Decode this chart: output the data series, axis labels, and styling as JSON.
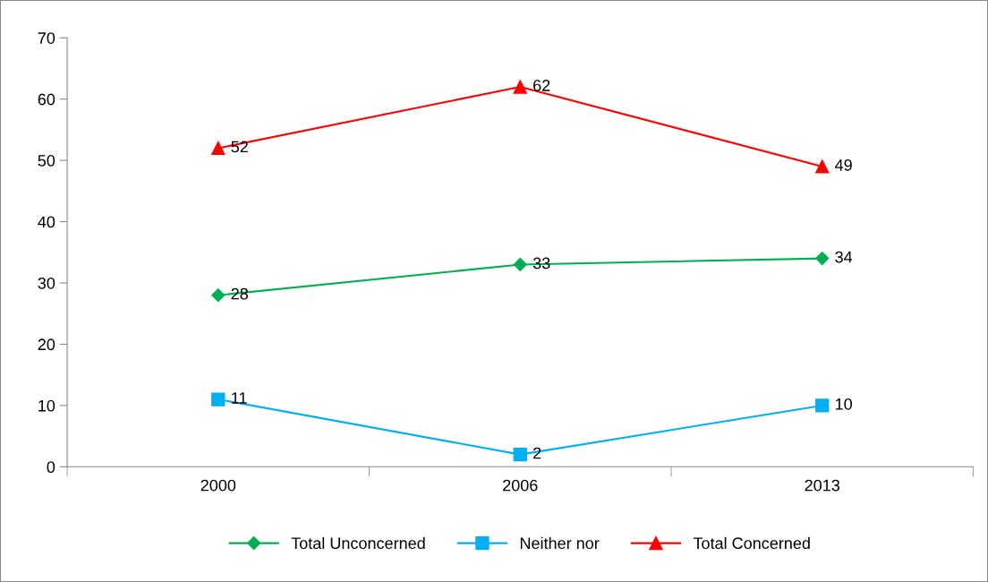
{
  "chart_data": {
    "type": "line",
    "categories": [
      "2000",
      "2006",
      "2013"
    ],
    "series": [
      {
        "name": "Total Unconcerned",
        "color": "#00b050",
        "marker": "diamond",
        "values": [
          28,
          33,
          34
        ]
      },
      {
        "name": "Neither nor",
        "color": "#00b0f0",
        "marker": "square",
        "values": [
          11,
          2,
          10
        ]
      },
      {
        "name": "Total Concerned",
        "color": "#ff0000",
        "marker": "triangle",
        "values": [
          52,
          62,
          49
        ]
      }
    ],
    "ylim": [
      0,
      70
    ],
    "yticks": [
      0,
      10,
      20,
      30,
      40,
      50,
      60,
      70
    ],
    "data_labels": true,
    "legend": "bottom",
    "grid": false,
    "line_style": "solid"
  }
}
